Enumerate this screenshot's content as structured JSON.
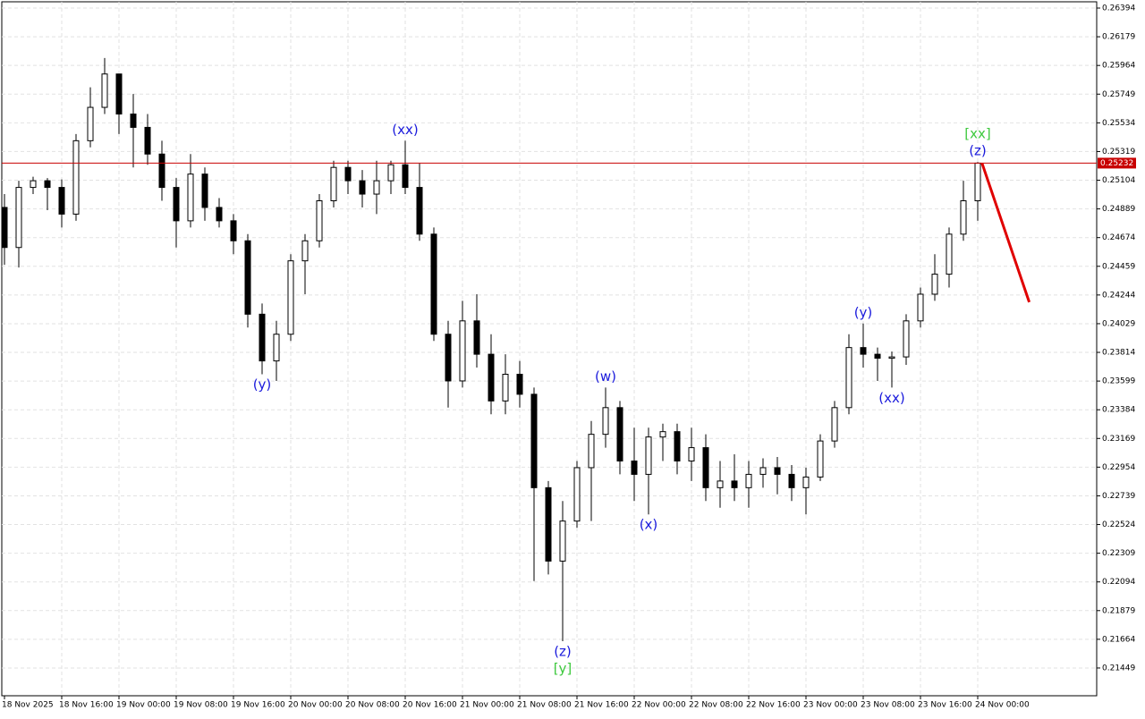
{
  "chart_data": {
    "type": "candlestick",
    "categories": [
      "18 Nov 2025",
      null,
      null,
      null,
      "18 Nov 16:00",
      null,
      null,
      null,
      "19 Nov 00:00",
      null,
      null,
      null,
      "19 Nov 08:00",
      null,
      null,
      null,
      "19 Nov 16:00",
      null,
      null,
      null,
      "20 Nov 00:00",
      null,
      null,
      null,
      "20 Nov 08:00",
      null,
      null,
      null,
      "20 Nov 16:00",
      null,
      null,
      null,
      "21 Nov 00:00",
      null,
      null,
      null,
      "21 Nov 08:00",
      null,
      null,
      null,
      "21 Nov 16:00",
      null,
      null,
      null,
      "22 Nov 00:00",
      null,
      null,
      null,
      "22 Nov 08:00",
      null,
      null,
      null,
      "22 Nov 16:00",
      null,
      null,
      null,
      "23 Nov 00:00",
      null,
      null,
      null,
      "23 Nov 08:00",
      null,
      null,
      null,
      "23 Nov 16:00",
      null,
      null,
      null,
      "24 Nov 00:00"
    ],
    "open": [
      0.249,
      0.246,
      0.2505,
      0.251,
      0.2505,
      0.2485,
      0.254,
      0.2565,
      0.259,
      0.256,
      0.255,
      0.253,
      0.2505,
      0.248,
      0.2515,
      0.249,
      0.248,
      0.2465,
      0.241,
      0.2375,
      0.2395,
      0.245,
      0.2465,
      0.2495,
      0.252,
      0.251,
      0.25,
      0.251,
      0.2522,
      0.2505,
      0.247,
      0.2395,
      0.236,
      0.2405,
      0.238,
      0.2345,
      0.2365,
      0.235,
      0.228,
      0.2225,
      0.2255,
      0.2295,
      0.232,
      0.234,
      0.23,
      0.229,
      0.2318,
      0.2322,
      0.23,
      0.231,
      0.228,
      0.2285,
      0.228,
      0.229,
      0.2295,
      0.229,
      0.228,
      0.2288,
      0.2315,
      0.234,
      0.2385,
      0.238,
      0.2377,
      0.2378,
      0.2405,
      0.2425,
      0.244,
      0.247,
      0.2495
    ],
    "high": [
      0.25,
      0.251,
      0.2513,
      0.2512,
      0.2511,
      0.2545,
      0.258,
      0.2602,
      0.259,
      0.2575,
      0.256,
      0.254,
      0.2512,
      0.253,
      0.252,
      0.2497,
      0.2485,
      0.247,
      0.2418,
      0.2405,
      0.2455,
      0.247,
      0.25,
      0.2525,
      0.2525,
      0.2518,
      0.2525,
      0.2525,
      0.254,
      0.2523,
      0.2475,
      0.2405,
      0.242,
      0.2425,
      0.2395,
      0.238,
      0.2375,
      0.2355,
      0.2285,
      0.227,
      0.23,
      0.233,
      0.2355,
      0.2345,
      0.2325,
      0.2325,
      0.2328,
      0.2328,
      0.2325,
      0.232,
      0.23,
      0.2305,
      0.23,
      0.2302,
      0.2303,
      0.2297,
      0.2295,
      0.232,
      0.2345,
      0.2395,
      0.2403,
      0.2385,
      0.2382,
      0.241,
      0.243,
      0.2455,
      0.2475,
      0.251,
      0.2524
    ],
    "low": [
      0.2447,
      0.2445,
      0.25,
      0.2488,
      0.2475,
      0.248,
      0.2535,
      0.256,
      0.2545,
      0.252,
      0.2522,
      0.2495,
      0.246,
      0.2475,
      0.248,
      0.2475,
      0.2455,
      0.24,
      0.2365,
      0.236,
      0.239,
      0.2425,
      0.246,
      0.249,
      0.25,
      0.249,
      0.2485,
      0.25,
      0.25,
      0.2465,
      0.239,
      0.234,
      0.2355,
      0.237,
      0.2335,
      0.2335,
      0.234,
      0.221,
      0.2215,
      0.2165,
      0.225,
      0.2255,
      0.231,
      0.229,
      0.227,
      0.226,
      0.23,
      0.229,
      0.2285,
      0.227,
      0.2265,
      0.227,
      0.2265,
      0.228,
      0.2275,
      0.227,
      0.226,
      0.2285,
      0.231,
      0.2335,
      0.237,
      0.236,
      0.2355,
      0.2372,
      0.24,
      0.242,
      0.243,
      0.2465,
      0.248
    ],
    "close": [
      0.246,
      0.2505,
      0.251,
      0.2505,
      0.2485,
      0.254,
      0.2565,
      0.259,
      0.256,
      0.255,
      0.253,
      0.2505,
      0.248,
      0.2515,
      0.249,
      0.248,
      0.2465,
      0.241,
      0.2375,
      0.2395,
      0.245,
      0.2465,
      0.2495,
      0.252,
      0.251,
      0.25,
      0.251,
      0.2522,
      0.2505,
      0.247,
      0.2395,
      0.236,
      0.2405,
      0.238,
      0.2345,
      0.2365,
      0.235,
      0.228,
      0.2225,
      0.2255,
      0.2295,
      0.232,
      0.234,
      0.23,
      0.229,
      0.2318,
      0.2322,
      0.23,
      0.231,
      0.228,
      0.2285,
      0.228,
      0.229,
      0.2295,
      0.229,
      0.228,
      0.2288,
      0.2315,
      0.234,
      0.2385,
      0.238,
      0.2377,
      0.2378,
      0.2405,
      0.2425,
      0.244,
      0.247,
      0.2495,
      0.25232
    ],
    "up_color": "#ffffff",
    "down_color": "#000000",
    "outline_color": "#000000",
    "ylim": [
      0.21241,
      0.26441
    ],
    "yticks": [
      0.26394,
      0.26179,
      0.25964,
      0.25749,
      0.25534,
      0.25319,
      0.25104,
      0.24889,
      0.24674,
      0.24459,
      0.24244,
      0.24029,
      0.23814,
      0.23599,
      0.23384,
      0.23169,
      0.22954,
      0.22739,
      0.22524,
      0.22309,
      0.22094,
      0.21879,
      0.21664,
      0.21449
    ],
    "grid": true,
    "current_price": 0.25232,
    "current_price_color": "#c80000",
    "annotations": [
      {
        "text": "(y)",
        "candle": 18,
        "at": "low",
        "color": "#1a1adc"
      },
      {
        "text": "(xx)",
        "candle": 28,
        "at": "high",
        "color": "#1a1adc"
      },
      {
        "text": "(z)",
        "candle": 39,
        "at": "low",
        "color": "#1a1adc"
      },
      {
        "text": "[y]",
        "candle": 39,
        "at": "low",
        "color": "#3cc83c"
      },
      {
        "text": "(w)",
        "candle": 42,
        "at": "high",
        "color": "#1a1adc"
      },
      {
        "text": "(x)",
        "candle": 45,
        "at": "low",
        "color": "#1a1adc"
      },
      {
        "text": "(y)",
        "candle": 60,
        "at": "high",
        "color": "#1a1adc"
      },
      {
        "text": "(xx)",
        "candle": 62,
        "at": "low",
        "color": "#1a1adc"
      },
      {
        "text": "(z)",
        "candle": 68,
        "at": "high",
        "color": "#1a1adc"
      },
      {
        "text": "[xx]",
        "candle": 68,
        "at": "high",
        "color": "#3cc83c"
      }
    ],
    "forecast": {
      "color": "#e00000",
      "x": [
        68.3,
        71.6
      ],
      "y": [
        0.25232,
        0.2419
      ]
    }
  }
}
